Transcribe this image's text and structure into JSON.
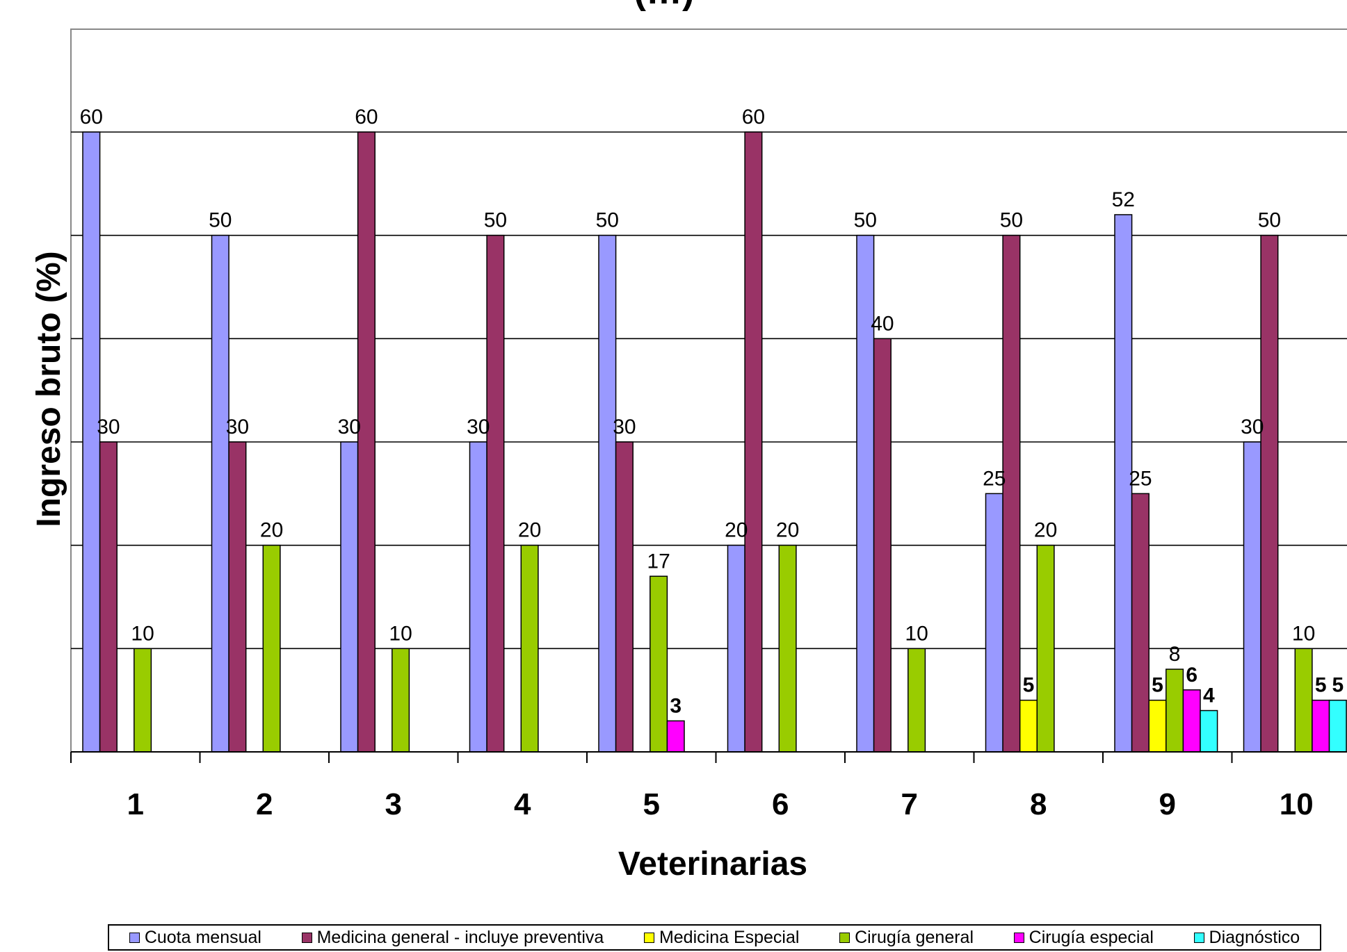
{
  "chart_data": {
    "type": "bar",
    "title": "(…)",
    "xlabel": "Veterinarias",
    "ylabel": "Ingreso bruto (%)",
    "ylim": [
      0,
      60
    ],
    "grid": true,
    "legend_position": "bottom",
    "categories": [
      "1",
      "2",
      "3",
      "4",
      "5",
      "6",
      "7",
      "8",
      "9",
      "10"
    ],
    "series": [
      {
        "name": "Cuota mensual",
        "color": "#9999ff",
        "values": [
          60,
          50,
          30,
          30,
          50,
          20,
          50,
          25,
          52,
          30
        ]
      },
      {
        "name": "Medicina general - incluye preventiva",
        "color": "#993366",
        "values": [
          30,
          30,
          60,
          50,
          30,
          60,
          40,
          50,
          25,
          50
        ]
      },
      {
        "name": "Medicina Especial",
        "color": "#ffff00",
        "values": [
          null,
          null,
          null,
          null,
          null,
          null,
          null,
          5,
          5,
          null
        ]
      },
      {
        "name": "Cirugía general",
        "color": "#99cc00",
        "values": [
          10,
          20,
          10,
          20,
          17,
          20,
          10,
          20,
          8,
          10
        ]
      },
      {
        "name": "Cirugía especial",
        "color": "#ff00ff",
        "values": [
          null,
          null,
          null,
          null,
          3,
          null,
          null,
          null,
          6,
          5
        ]
      },
      {
        "name": "Diagnóstico",
        "color": "#33ffff",
        "values": [
          null,
          null,
          null,
          null,
          null,
          null,
          null,
          null,
          4,
          5
        ]
      }
    ]
  }
}
